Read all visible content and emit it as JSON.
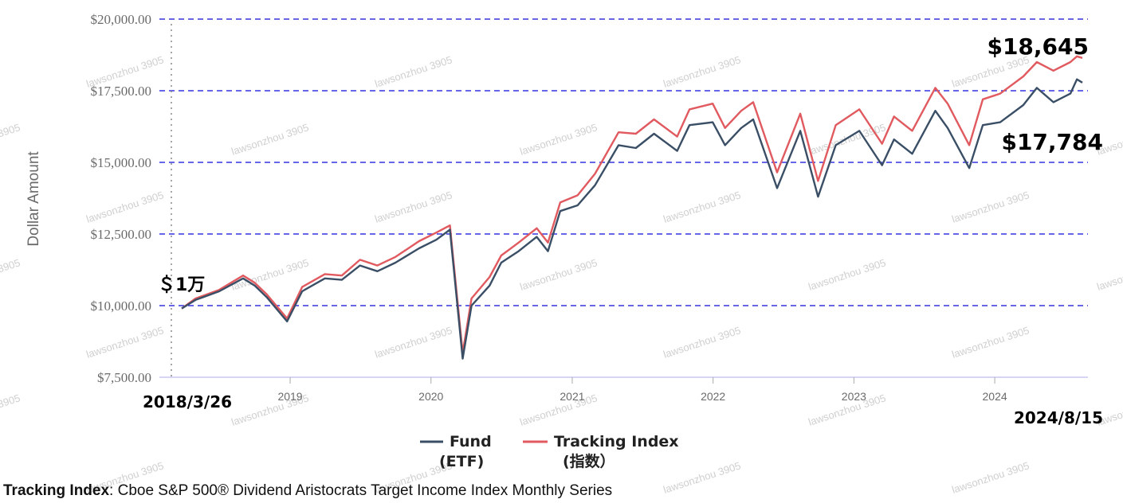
{
  "chart_data": {
    "type": "line",
    "ylabel": "Dollar Amount",
    "ylim": [
      7500,
      20000
    ],
    "y_ticks": [
      "$20,000.00",
      "$17,500.00",
      "$15,000.00",
      "$12,500.00",
      "$10,000.00",
      "$7,500.00"
    ],
    "y_tick_values": [
      20000,
      17500,
      15000,
      12500,
      10000,
      7500
    ],
    "x_ticks": [
      "2019",
      "2020",
      "2021",
      "2022",
      "2023",
      "2024"
    ],
    "x_range": [
      "2018-03-26",
      "2024-08-15"
    ],
    "grid": "horizontal dashed blue",
    "legend_position": "bottom",
    "series": [
      {
        "name": "Fund",
        "color": "#3a4f66",
        "x": [
          "2018-03-26",
          "2018-05-01",
          "2018-07-01",
          "2018-09-01",
          "2018-10-01",
          "2018-11-01",
          "2018-12-24",
          "2019-02-01",
          "2019-04-01",
          "2019-05-15",
          "2019-07-01",
          "2019-08-15",
          "2019-10-01",
          "2019-12-01",
          "2020-01-15",
          "2020-02-19",
          "2020-03-23",
          "2020-04-15",
          "2020-06-01",
          "2020-07-01",
          "2020-08-15",
          "2020-10-01",
          "2020-10-30",
          "2020-12-01",
          "2021-01-15",
          "2021-03-01",
          "2021-05-01",
          "2021-06-15",
          "2021-08-01",
          "2021-09-30",
          "2021-11-01",
          "2021-12-31",
          "2022-02-01",
          "2022-03-15",
          "2022-04-15",
          "2022-06-16",
          "2022-08-15",
          "2022-09-30",
          "2022-11-15",
          "2023-01-15",
          "2023-03-15",
          "2023-04-15",
          "2023-06-01",
          "2023-07-31",
          "2023-09-01",
          "2023-10-27",
          "2023-12-01",
          "2024-01-15",
          "2024-03-15",
          "2024-04-19",
          "2024-06-01",
          "2024-07-15",
          "2024-08-01",
          "2024-08-15"
        ],
        "values": [
          9900,
          10200,
          10500,
          10950,
          10700,
          10300,
          9450,
          10500,
          10950,
          10900,
          11400,
          11200,
          11500,
          12000,
          12300,
          12650,
          8150,
          10000,
          10700,
          11500,
          11900,
          12400,
          11900,
          13300,
          13500,
          14200,
          15600,
          15500,
          16000,
          15400,
          16300,
          16400,
          15600,
          16200,
          16500,
          14100,
          16100,
          13800,
          15600,
          16100,
          14900,
          15800,
          15300,
          16800,
          16200,
          14800,
          16300,
          16400,
          17000,
          17600,
          17100,
          17400,
          17900,
          17784
        ]
      },
      {
        "name": "Tracking Index",
        "color": "#e05a5f",
        "x": [
          "2018-03-26",
          "2018-05-01",
          "2018-07-01",
          "2018-09-01",
          "2018-10-01",
          "2018-11-01",
          "2018-12-24",
          "2019-02-01",
          "2019-04-01",
          "2019-05-15",
          "2019-07-01",
          "2019-08-15",
          "2019-10-01",
          "2019-12-01",
          "2020-01-15",
          "2020-02-19",
          "2020-03-23",
          "2020-04-15",
          "2020-06-01",
          "2020-07-01",
          "2020-08-15",
          "2020-10-01",
          "2020-10-30",
          "2020-12-01",
          "2021-01-15",
          "2021-03-01",
          "2021-05-01",
          "2021-06-15",
          "2021-08-01",
          "2021-09-30",
          "2021-11-01",
          "2021-12-31",
          "2022-02-01",
          "2022-03-15",
          "2022-04-15",
          "2022-06-16",
          "2022-08-15",
          "2022-09-30",
          "2022-11-15",
          "2023-01-15",
          "2023-03-15",
          "2023-04-15",
          "2023-06-01",
          "2023-07-31",
          "2023-09-01",
          "2023-10-27",
          "2023-12-01",
          "2024-01-15",
          "2024-03-15",
          "2024-04-19",
          "2024-06-01",
          "2024-07-15",
          "2024-08-01",
          "2024-08-15"
        ],
        "values": [
          9900,
          10250,
          10550,
          11050,
          10800,
          10400,
          9550,
          10650,
          11100,
          11050,
          11600,
          11400,
          11700,
          12250,
          12550,
          12800,
          8350,
          10250,
          11000,
          11750,
          12200,
          12700,
          12200,
          13600,
          13850,
          14600,
          16050,
          16000,
          16500,
          15900,
          16850,
          17050,
          16200,
          16800,
          17100,
          14650,
          16700,
          14350,
          16300,
          16850,
          15650,
          16600,
          16100,
          17600,
          17050,
          15600,
          17200,
          17400,
          18000,
          18500,
          18200,
          18500,
          18700,
          18645
        ]
      }
    ],
    "annotations": {
      "start_value": "＄1万",
      "start_date": "2018/3/26",
      "end_date": "2024/8/15",
      "fund_end": "$17,784",
      "index_end": "$18,645"
    },
    "legend": {
      "fund_label": "Fund",
      "fund_sub": "(ETF)",
      "index_label": "Tracking Index",
      "index_sub": "(指数）"
    }
  },
  "footnote": {
    "label": "Tracking Index",
    "text": ": Cboe S&P 500® Dividend Aristocrats Target Income Index Monthly Series"
  },
  "watermark": "lawsonzhou 3905"
}
